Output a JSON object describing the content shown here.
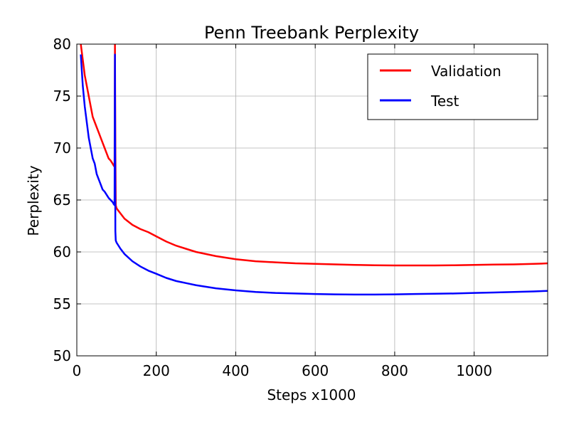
{
  "chart_data": {
    "type": "line",
    "title": "Penn Treebank Perplexity",
    "xlabel": "Steps x1000",
    "ylabel": "Perplexity",
    "xlim": [
      0,
      1185
    ],
    "ylim": [
      50,
      80
    ],
    "xticks": [
      0,
      200,
      400,
      600,
      800,
      1000
    ],
    "yticks": [
      50,
      55,
      60,
      65,
      70,
      75,
      80
    ],
    "grid": true,
    "legend": "top-right",
    "series": [
      {
        "name": "Validation",
        "color": "#ff0000",
        "x": [
          10,
          15,
          20,
          25,
          30,
          35,
          40,
          45,
          50,
          55,
          60,
          65,
          70,
          75,
          80,
          85,
          90,
          93,
          95,
          96,
          97,
          98,
          100,
          110,
          120,
          140,
          160,
          180,
          200,
          225,
          250,
          275,
          300,
          350,
          400,
          450,
          500,
          550,
          600,
          650,
          700,
          750,
          800,
          850,
          900,
          950,
          1000,
          1050,
          1100,
          1150,
          1185
        ],
        "y": [
          80,
          78.5,
          77,
          76,
          75,
          74,
          73,
          72.5,
          72,
          71.5,
          71,
          70.5,
          70,
          69.5,
          69,
          68.8,
          68.5,
          68.3,
          68.2,
          80,
          70,
          64.5,
          64.2,
          63.7,
          63.2,
          62.6,
          62.2,
          61.9,
          61.5,
          61.0,
          60.6,
          60.3,
          60.0,
          59.6,
          59.3,
          59.1,
          59.0,
          58.9,
          58.85,
          58.8,
          58.75,
          58.72,
          58.7,
          58.7,
          58.7,
          58.72,
          58.75,
          58.78,
          58.8,
          58.85,
          58.9
        ]
      },
      {
        "name": "Test",
        "color": "#0000ff",
        "x": [
          10,
          15,
          20,
          25,
          30,
          35,
          40,
          45,
          50,
          55,
          60,
          65,
          70,
          75,
          80,
          85,
          90,
          93,
          95,
          96,
          97,
          98,
          100,
          110,
          120,
          140,
          160,
          180,
          200,
          225,
          250,
          275,
          300,
          350,
          400,
          450,
          500,
          550,
          600,
          650,
          700,
          750,
          800,
          850,
          900,
          950,
          1000,
          1050,
          1100,
          1150,
          1185
        ],
        "y": [
          79,
          76,
          74,
          72.5,
          71,
          70,
          69,
          68.5,
          67.5,
          67,
          66.5,
          66,
          65.8,
          65.5,
          65.2,
          65,
          64.8,
          64.6,
          64.5,
          79,
          62,
          61.1,
          60.9,
          60.3,
          59.8,
          59.1,
          58.6,
          58.2,
          57.9,
          57.5,
          57.2,
          57.0,
          56.8,
          56.5,
          56.3,
          56.15,
          56.05,
          56.0,
          55.95,
          55.92,
          55.9,
          55.9,
          55.92,
          55.95,
          55.98,
          56.0,
          56.05,
          56.1,
          56.15,
          56.2,
          56.25
        ]
      }
    ]
  }
}
